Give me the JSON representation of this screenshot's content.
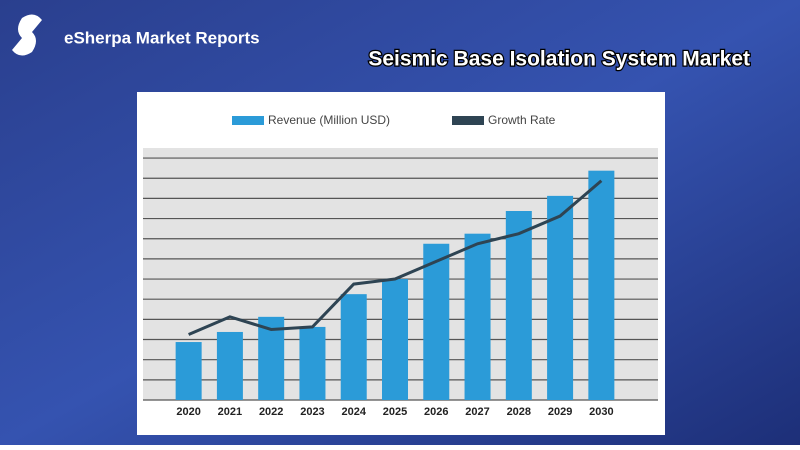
{
  "brand": "eSherpa Market Reports",
  "chart_data": {
    "type": "bar-line",
    "title": "Seismic Base Isolation System Market",
    "categories": [
      "2020",
      "2021",
      "2022",
      "2023",
      "2024",
      "2025",
      "2026",
      "2027",
      "2028",
      "2029",
      "2030"
    ],
    "series": [
      {
        "name": "Revenue (Million USD)",
        "type": "bar",
        "color": "#2b9bd8",
        "values": [
          23,
          27,
          33,
          29,
          42,
          48,
          62,
          66,
          75,
          81,
          91
        ]
      },
      {
        "name": "Growth Rate",
        "type": "line",
        "color": "#2e4453",
        "values": [
          26,
          33,
          28,
          29,
          46,
          48,
          55,
          62,
          66,
          73,
          87
        ]
      }
    ],
    "ylim": [
      0,
      100
    ],
    "yticks": [
      0,
      8,
      16,
      24,
      32,
      40,
      48,
      56,
      64,
      72,
      80,
      88,
      96
    ],
    "grid": true
  }
}
